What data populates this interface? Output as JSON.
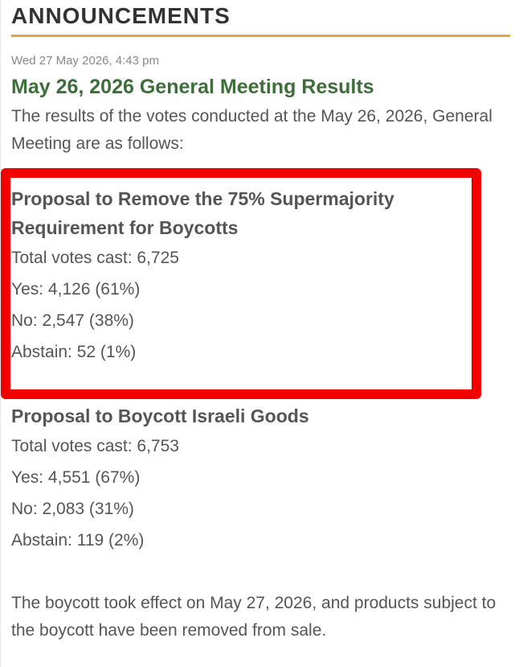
{
  "header": {
    "title": "ANNOUNCEMENTS"
  },
  "post": {
    "date": "Wed 27 May 2026, 4:43 pm",
    "title": "May 26, 2026 General Meeting Results",
    "intro": "The results of the votes conducted at the May 26, 2026, General Meeting are as follows:",
    "proposals": [
      {
        "title": "Proposal to Remove the 75% Supermajority Requirement for Boycotts",
        "lines": [
          "Total votes cast: 6,725",
          "Yes: 4,126 (61%)",
          "No: 2,547 (38%)",
          "Abstain: 52 (1%)"
        ]
      },
      {
        "title": "Proposal to Boycott Israeli Goods",
        "lines": [
          "Total votes cast: 6,753",
          "Yes: 4,551 (67%)",
          "No: 2,083 (31%)",
          "Abstain: 119 (2%)"
        ]
      }
    ],
    "closing": "The boycott took effect on May 27, 2026, and products subject to the boycott have been removed from sale."
  }
}
